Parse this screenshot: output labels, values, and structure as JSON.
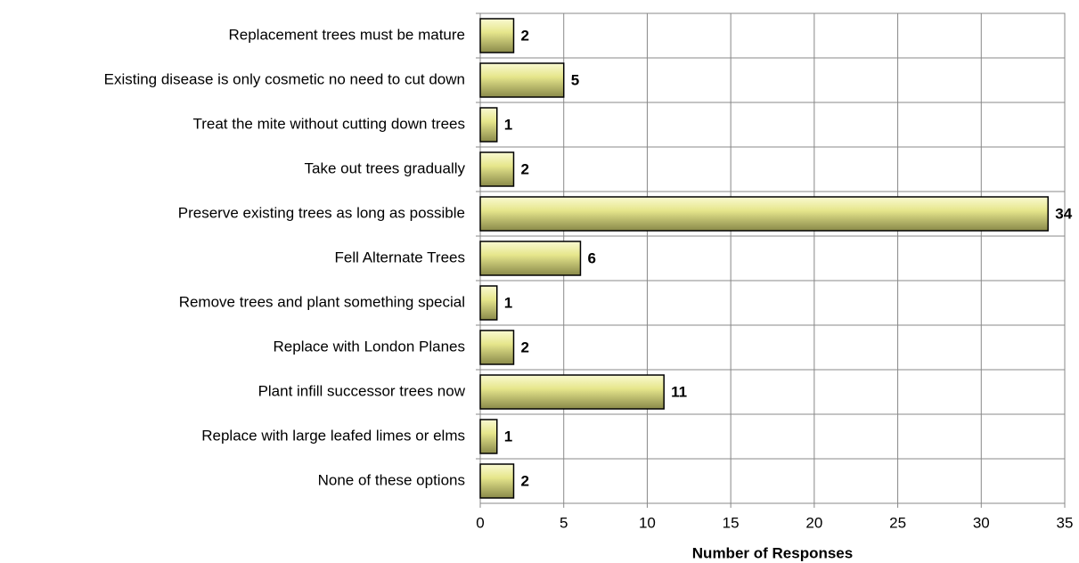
{
  "chart_data": {
    "type": "hbar",
    "x_label": "Number of Responses",
    "categories": [
      "Replacement trees must be mature",
      "Existing disease is only cosmetic no need to cut down",
      "Treat the mite without cutting down trees",
      "Take out trees gradually",
      "Preserve existing trees as long as possible",
      "Fell Alternate Trees",
      "Remove trees and plant something special",
      "Replace with London Planes",
      "Plant infill successor trees now",
      "Replace with large leafed limes or elms",
      "None of these options"
    ],
    "values": [
      2,
      5,
      1,
      2,
      34,
      6,
      1,
      2,
      11,
      1,
      2
    ],
    "color": "#e6e68c",
    "xlim": [
      0,
      35
    ],
    "xticks": [
      0,
      5,
      10,
      15,
      20,
      25,
      30,
      35
    ],
    "grid": true
  }
}
